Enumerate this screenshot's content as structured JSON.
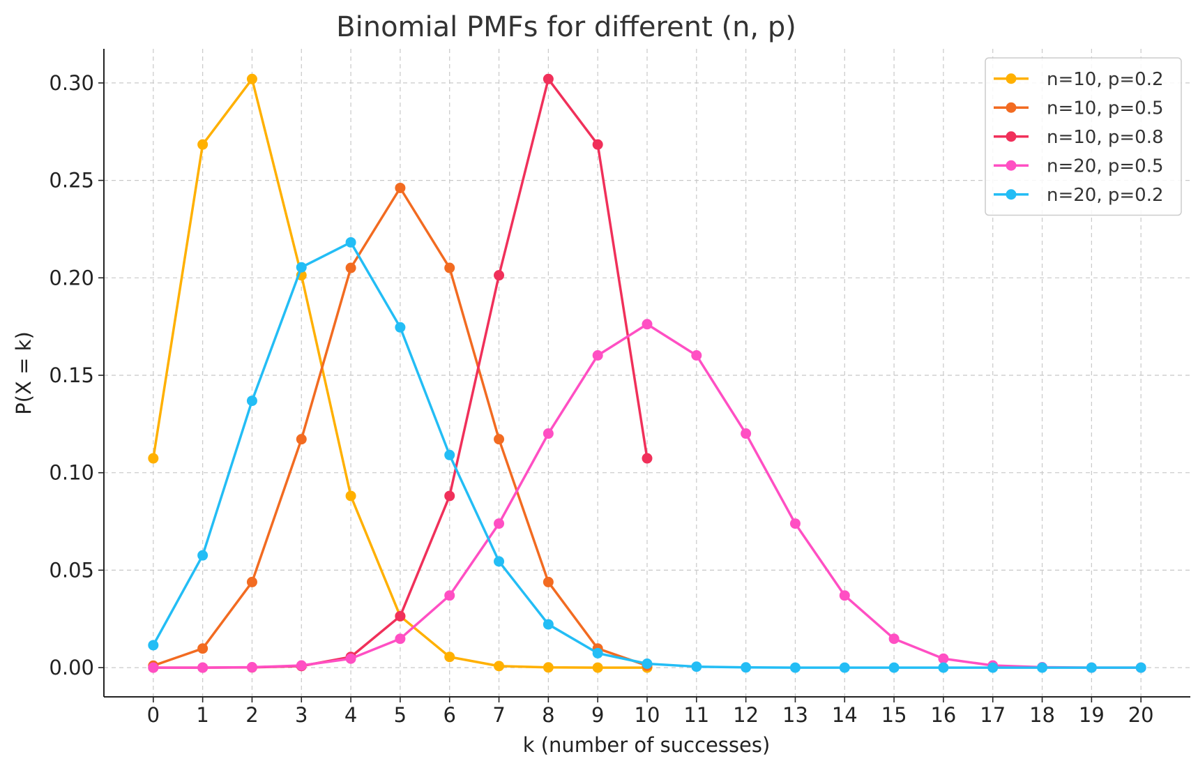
{
  "chart_data": {
    "type": "line",
    "title": "Binomial PMFs for different (n, p)",
    "xlabel": "k (number of successes)",
    "ylabel": "P(X = k)",
    "xlim": [
      -1,
      21
    ],
    "ylim": [
      -0.015,
      0.3175
    ],
    "xticks": [
      0,
      1,
      2,
      3,
      4,
      5,
      6,
      7,
      8,
      9,
      10,
      11,
      12,
      13,
      14,
      15,
      16,
      17,
      18,
      19,
      20
    ],
    "yticks": [
      0.0,
      0.05,
      0.1,
      0.15,
      0.2,
      0.25,
      0.3
    ],
    "ytick_labels": [
      "0.00",
      "0.05",
      "0.10",
      "0.15",
      "0.20",
      "0.25",
      "0.30"
    ],
    "grid": true,
    "legend_position": "top-right",
    "series": [
      {
        "name": "n=10, p=0.2",
        "color": "#FFB000",
        "x": [
          0,
          1,
          2,
          3,
          4,
          5,
          6,
          7,
          8,
          9,
          10
        ],
        "values": [
          0.1074,
          0.2684,
          0.302,
          0.2013,
          0.0881,
          0.0264,
          0.0055,
          0.0008,
          0.0001,
          0.0,
          0.0
        ]
      },
      {
        "name": "n=10, p=0.5",
        "color": "#F26B21",
        "x": [
          0,
          1,
          2,
          3,
          4,
          5,
          6,
          7,
          8,
          9,
          10
        ],
        "values": [
          0.001,
          0.0098,
          0.0439,
          0.1172,
          0.2051,
          0.2461,
          0.2051,
          0.1172,
          0.0439,
          0.0098,
          0.001
        ]
      },
      {
        "name": "n=10, p=0.8",
        "color": "#F0305A",
        "x": [
          0,
          1,
          2,
          3,
          4,
          5,
          6,
          7,
          8,
          9,
          10
        ],
        "values": [
          0.0,
          0.0,
          0.0001,
          0.0008,
          0.0055,
          0.0264,
          0.0881,
          0.2013,
          0.302,
          0.2684,
          0.1074
        ]
      },
      {
        "name": "n=20, p=0.5",
        "color": "#FF4FC3",
        "x": [
          0,
          1,
          2,
          3,
          4,
          5,
          6,
          7,
          8,
          9,
          10,
          11,
          12,
          13,
          14,
          15,
          16,
          17,
          18,
          19,
          20
        ],
        "values": [
          0.0,
          0.0,
          0.0002,
          0.0011,
          0.0046,
          0.0148,
          0.037,
          0.0739,
          0.1201,
          0.1602,
          0.1762,
          0.1602,
          0.1201,
          0.0739,
          0.037,
          0.0148,
          0.0046,
          0.0011,
          0.0002,
          0.0,
          0.0
        ]
      },
      {
        "name": "n=20, p=0.2",
        "color": "#23BDF5",
        "x": [
          0,
          1,
          2,
          3,
          4,
          5,
          6,
          7,
          8,
          9,
          10,
          11,
          12,
          13,
          14,
          15,
          16,
          17,
          18,
          19,
          20
        ],
        "values": [
          0.0115,
          0.0576,
          0.1369,
          0.2054,
          0.2182,
          0.1746,
          0.1091,
          0.0545,
          0.0222,
          0.0074,
          0.002,
          0.0005,
          0.0001,
          0.0,
          0.0,
          0.0,
          0.0,
          0.0,
          0.0,
          0.0,
          0.0
        ]
      }
    ]
  }
}
